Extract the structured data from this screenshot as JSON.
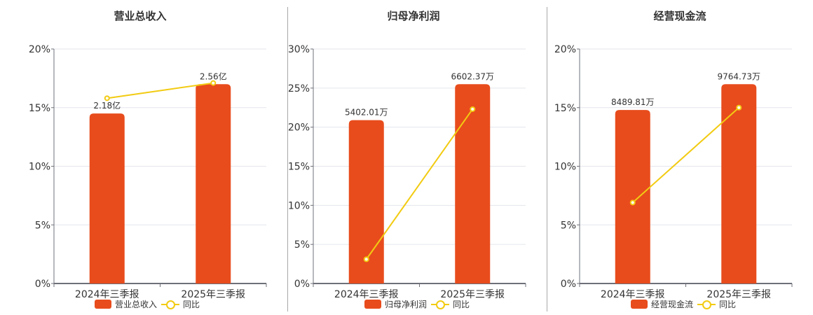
{
  "colors": {
    "bar": "#e84c1c",
    "line": "#f2cb12",
    "grid": "#e3e6ec",
    "axis": "#6e7079"
  },
  "legend_line_label": "同比",
  "chart_data": [
    {
      "type": "bar",
      "title": "营业总收入",
      "categories": [
        "2024年三季报",
        "2025年三季报"
      ],
      "series": [
        {
          "name": "营业总收入",
          "type": "bar",
          "labels": [
            "2.18亿",
            "2.56亿"
          ],
          "values": [
            2.18,
            2.56
          ],
          "unit": "亿",
          "bar_heights_axis": [
            14.5,
            17.0
          ]
        },
        {
          "name": "同比",
          "type": "line",
          "values": [
            15.8,
            17.1
          ],
          "unit": "%"
        }
      ],
      "yticks": [
        "0%",
        "5%",
        "10%",
        "15%",
        "20%"
      ],
      "ylim": [
        0,
        20
      ],
      "grid": true,
      "legend_position": "bottom"
    },
    {
      "type": "bar",
      "title": "归母净利润",
      "categories": [
        "2024年三季报",
        "2025年三季报"
      ],
      "series": [
        {
          "name": "归母净利润",
          "type": "bar",
          "labels": [
            "5402.01万",
            "6602.37万"
          ],
          "values": [
            5402.01,
            6602.37
          ],
          "unit": "万",
          "bar_heights_axis": [
            20.9,
            25.5
          ]
        },
        {
          "name": "同比",
          "type": "line",
          "values": [
            3.1,
            22.3
          ],
          "unit": "%"
        }
      ],
      "yticks": [
        "0%",
        "5%",
        "10%",
        "15%",
        "20%",
        "25%",
        "30%"
      ],
      "ylim": [
        0,
        30
      ],
      "grid": true,
      "legend_position": "bottom"
    },
    {
      "type": "bar",
      "title": "经营现金流",
      "categories": [
        "2024年三季报",
        "2025年三季报"
      ],
      "series": [
        {
          "name": "经营现金流",
          "type": "bar",
          "labels": [
            "8489.81万",
            "9764.73万"
          ],
          "values": [
            8489.81,
            9764.73
          ],
          "unit": "万",
          "bar_heights_axis": [
            14.8,
            17.0
          ]
        },
        {
          "name": "同比",
          "type": "line",
          "values": [
            6.9,
            15.0
          ],
          "unit": "%"
        }
      ],
      "yticks": [
        "0%",
        "5%",
        "10%",
        "15%",
        "20%"
      ],
      "ylim": [
        0,
        20
      ],
      "grid": true,
      "legend_position": "bottom"
    }
  ]
}
